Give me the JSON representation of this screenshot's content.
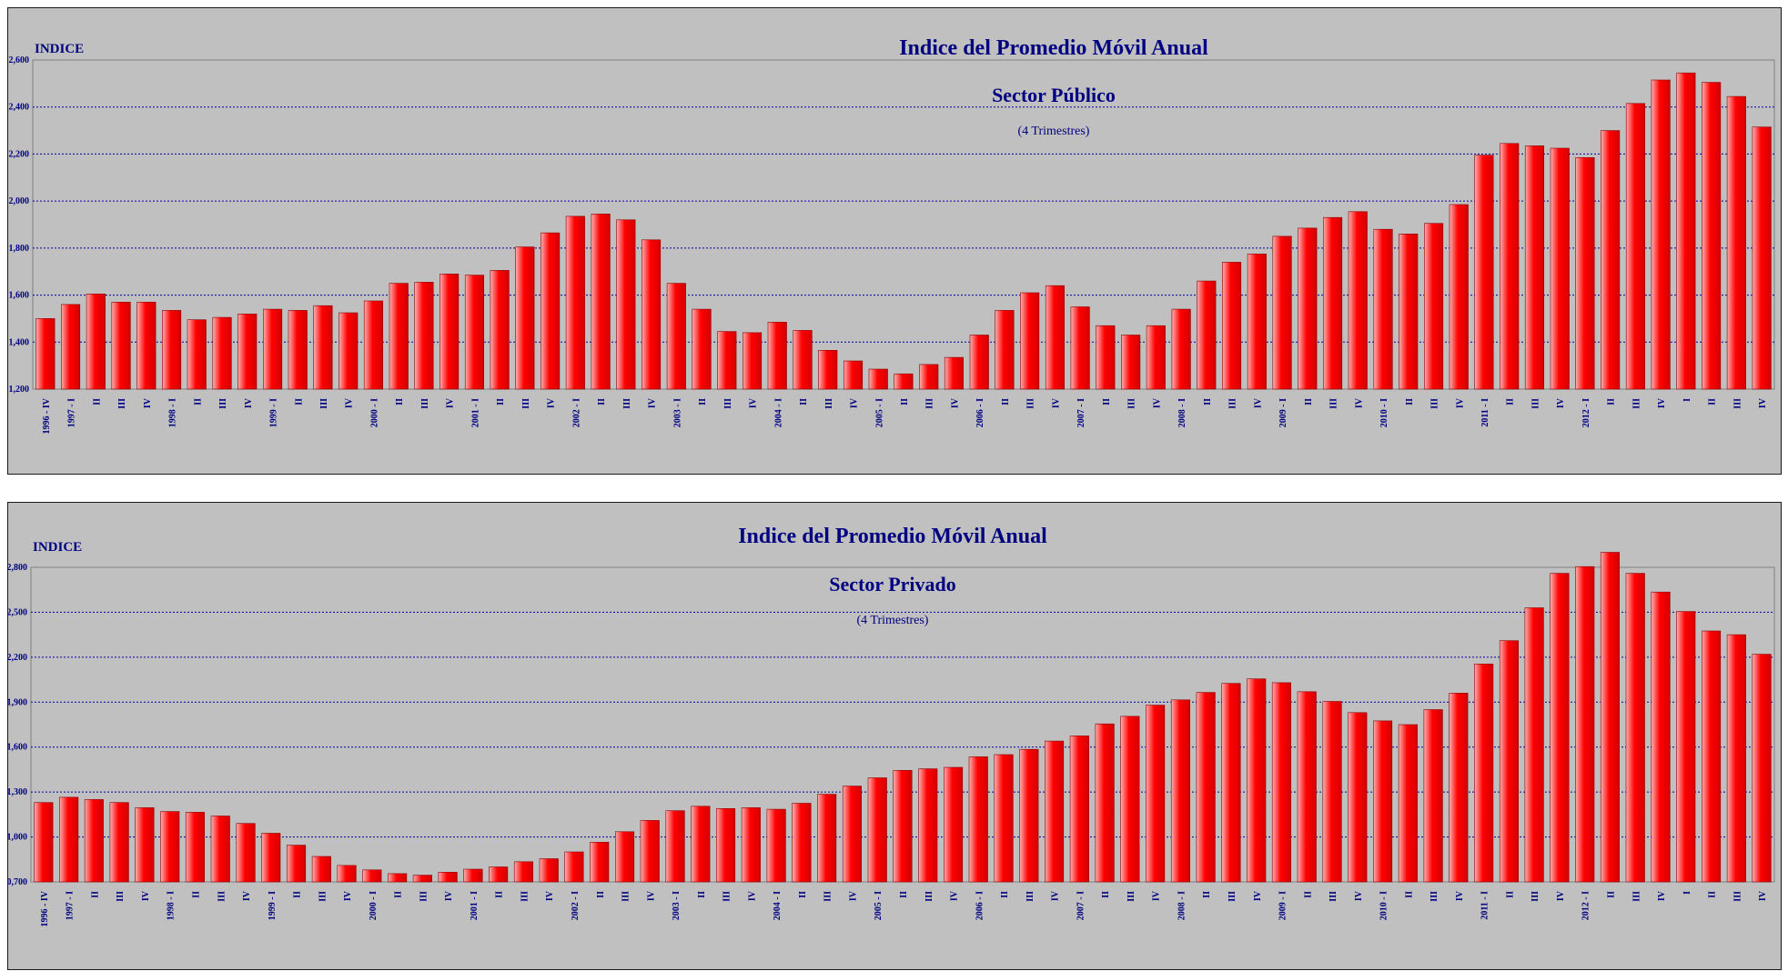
{
  "colors": {
    "panel_bg": "#c0c0c0",
    "grid": "#000099",
    "title": "#000080",
    "bar": "#ff0000",
    "bar_light": "#ffb0b0",
    "bar_dark": "#d40000",
    "frame": "#1a1a1a"
  },
  "chart_data": [
    {
      "type": "bar",
      "title": "Indice del Promedio Móvil Anual",
      "subtitle": "Sector Público",
      "note": "(4 Trimestres)",
      "ylabel": "INDICE",
      "ylim": [
        1200,
        2600
      ],
      "yticks": [
        "1,200",
        "1,400",
        "1,600",
        "1,800",
        "2,000",
        "2,200",
        "2,400",
        "2,600"
      ],
      "grid": true,
      "categories": [
        "1996 - IV",
        "1997 - I",
        "II",
        "III",
        "IV",
        "1998 - I",
        "II",
        "III",
        "IV",
        "1999 - I",
        "II",
        "III",
        "IV",
        "2000 - I",
        "II",
        "III",
        "IV",
        "2001 - I",
        "II",
        "III",
        "IV",
        "2002 - I",
        "II",
        "III",
        "IV",
        "2003 - I",
        "II",
        "III",
        "IV",
        "2004 - I",
        "II",
        "III",
        "IV",
        "2005 - I",
        "II",
        "III",
        "IV",
        "2006 - I",
        "II",
        "III",
        "IV",
        "2007 - I",
        "II",
        "III",
        "IV",
        "2008 - I",
        "II",
        "III",
        "IV",
        "2009 - I",
        "II",
        "III",
        "IV",
        "2010 - I",
        "II",
        "III",
        "IV",
        "2011 - I",
        "II",
        "III",
        "IV",
        "2012 - I",
        "II",
        "III",
        "IV",
        "I",
        "II",
        "III",
        "IV"
      ],
      "values": [
        1500,
        1560,
        1605,
        1570,
        1570,
        1535,
        1495,
        1505,
        1520,
        1540,
        1535,
        1555,
        1525,
        1575,
        1650,
        1655,
        1690,
        1685,
        1705,
        1805,
        1865,
        1935,
        1945,
        1920,
        1835,
        1650,
        1540,
        1445,
        1440,
        1485,
        1450,
        1365,
        1320,
        1285,
        1265,
        1305,
        1335,
        1430,
        1535,
        1610,
        1640,
        1550,
        1470,
        1430,
        1470,
        1540,
        1660,
        1740,
        1775,
        1850,
        1885,
        1930,
        1955,
        1880,
        1860,
        1905,
        1985,
        2195,
        2245,
        2235,
        2225,
        2185,
        2300,
        2415,
        2515,
        2545,
        2505,
        2445,
        2315
      ]
    },
    {
      "type": "bar",
      "title": "Indice del Promedio Móvil Anual",
      "subtitle": "Sector Privado",
      "note": "(4 Trimestres)",
      "ylabel": "INDICE",
      "ylim": [
        700,
        2800
      ],
      "yticks": [
        "0,700",
        "1,000",
        "1,300",
        "1,600",
        "1,900",
        "2,200",
        "2,500",
        "2,800"
      ],
      "grid": true,
      "categories": [
        "1996 - IV",
        "1997 - I",
        "II",
        "III",
        "IV",
        "1998 - I",
        "II",
        "III",
        "IV",
        "1999 - I",
        "II",
        "III",
        "IV",
        "2000 - I",
        "II",
        "III",
        "IV",
        "2001 - I",
        "II",
        "III",
        "IV",
        "2002 - I",
        "II",
        "III",
        "IV",
        "2003 - I",
        "II",
        "III",
        "IV",
        "2004 - I",
        "II",
        "III",
        "IV",
        "2005 - I",
        "II",
        "III",
        "IV",
        "2006 - I",
        "II",
        "III",
        "IV",
        "2007 - I",
        "II",
        "III",
        "IV",
        "2008 - I",
        "II",
        "III",
        "IV",
        "2009 - I",
        "II",
        "III",
        "IV",
        "2010 - I",
        "II",
        "III",
        "IV",
        "2011 - I",
        "II",
        "III",
        "IV",
        "2012 - I",
        "II",
        "III",
        "IV",
        "I",
        "II",
        "III",
        "IV"
      ],
      "values": [
        1230,
        1265,
        1250,
        1230,
        1195,
        1170,
        1165,
        1140,
        1090,
        1025,
        945,
        870,
        810,
        780,
        755,
        745,
        765,
        785,
        800,
        835,
        855,
        900,
        965,
        1035,
        1110,
        1175,
        1205,
        1190,
        1195,
        1185,
        1225,
        1285,
        1340,
        1395,
        1445,
        1455,
        1465,
        1535,
        1550,
        1585,
        1640,
        1675,
        1755,
        1805,
        1880,
        1915,
        1965,
        2025,
        2055,
        2030,
        1970,
        1905,
        1830,
        1775,
        1750,
        1850,
        1960,
        2155,
        2310,
        2530,
        2760,
        2805,
        2900,
        2760,
        2635,
        2505,
        2375,
        2350,
        2220
      ]
    }
  ]
}
